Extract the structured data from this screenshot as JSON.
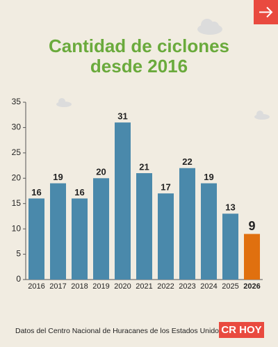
{
  "chart_data": {
    "type": "bar",
    "title": [
      "Cantidad de ciclones",
      "desde 2016"
    ],
    "categories": [
      "2016",
      "2017",
      "2018",
      "2019",
      "2020",
      "2021",
      "2022",
      "2023",
      "2024",
      "2025",
      "2026"
    ],
    "values": [
      16,
      19,
      16,
      20,
      31,
      21,
      17,
      22,
      19,
      13,
      9
    ],
    "color": "#4a89ab",
    "colors": [
      "#4a89ab",
      "#4a89ab",
      "#4a89ab",
      "#4a89ab",
      "#4a89ab",
      "#4a89ab",
      "#4a89ab",
      "#4a89ab",
      "#4a89ab",
      "#4a89ab",
      "#e0700f"
    ],
    "ylim": [
      0,
      35
    ],
    "yticks": [
      0,
      5,
      10,
      15,
      20,
      25,
      30,
      35
    ]
  },
  "footer": {
    "source": "Datos del Centro Nacional de Huracanes de los Estados Unidos.",
    "logo": "CR HOY"
  }
}
